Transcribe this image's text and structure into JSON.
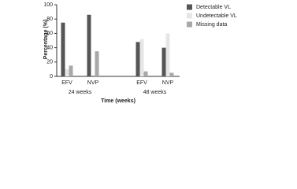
{
  "chart_data": {
    "type": "bar",
    "ylabel": "Percentage (%)",
    "xlabel": "Time (weeks)",
    "categories": [
      "EFV",
      "NVP",
      "EFV",
      "NVP"
    ],
    "group_labels": [
      "24 weeks",
      "48 weeks"
    ],
    "series": [
      {
        "name": "Detectable VL",
        "color": "#555555",
        "values": [
          75,
          86,
          48,
          40
        ]
      },
      {
        "name": "Undetectable VL",
        "color": "#e6e6e6",
        "values": [
          10,
          0,
          52,
          60
        ]
      },
      {
        "name": "Missing data",
        "color": "#a8a8a8",
        "values": [
          15,
          35,
          7,
          5
        ]
      }
    ],
    "ylim": [
      0,
      100
    ],
    "yticks": [
      0,
      20,
      40,
      60,
      80,
      100
    ]
  }
}
